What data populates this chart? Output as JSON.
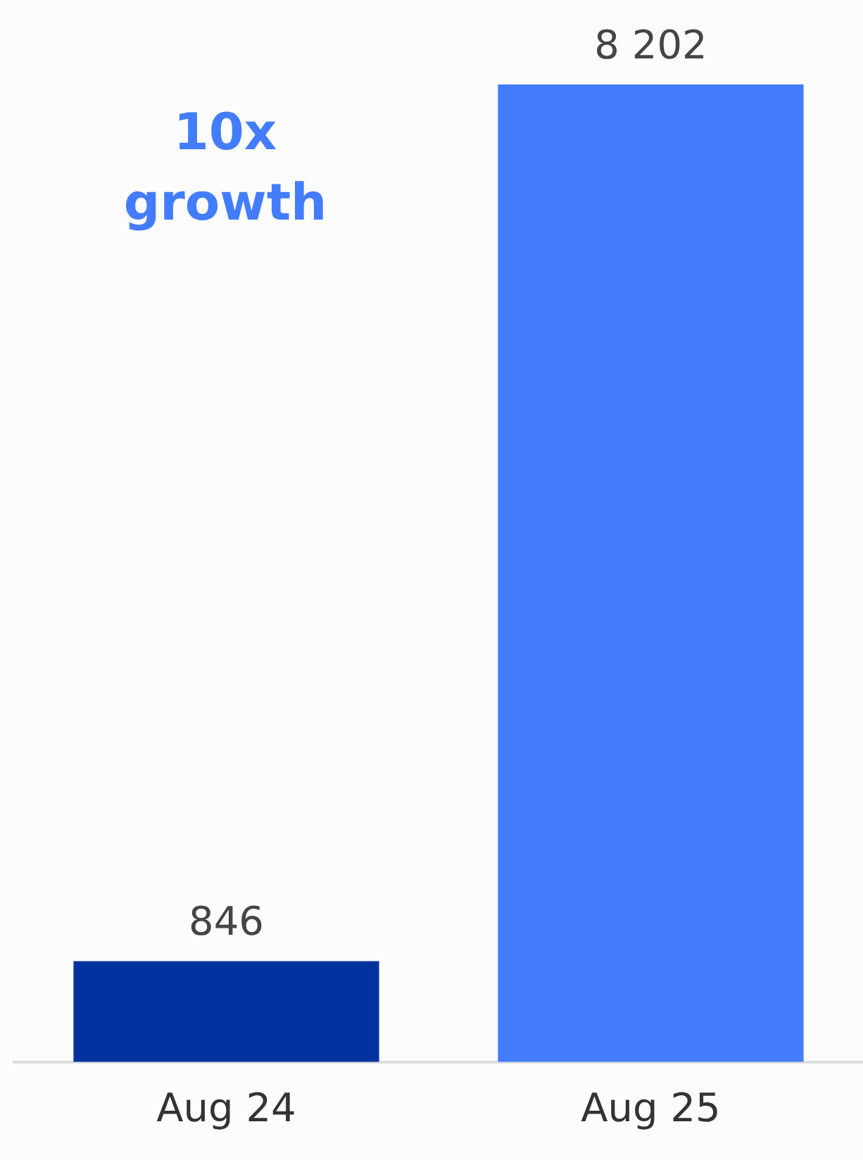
{
  "chart_data": {
    "type": "bar",
    "categories": [
      "Aug 24",
      "Aug 25"
    ],
    "values": [
      846,
      8202
    ],
    "colors": [
      "#0033a0",
      "#437dfe"
    ],
    "value_labels": [
      "846",
      "8 202"
    ],
    "annotations": [
      "10x growth"
    ],
    "grid": false,
    "tick_labels": "x",
    "legend": false
  }
}
